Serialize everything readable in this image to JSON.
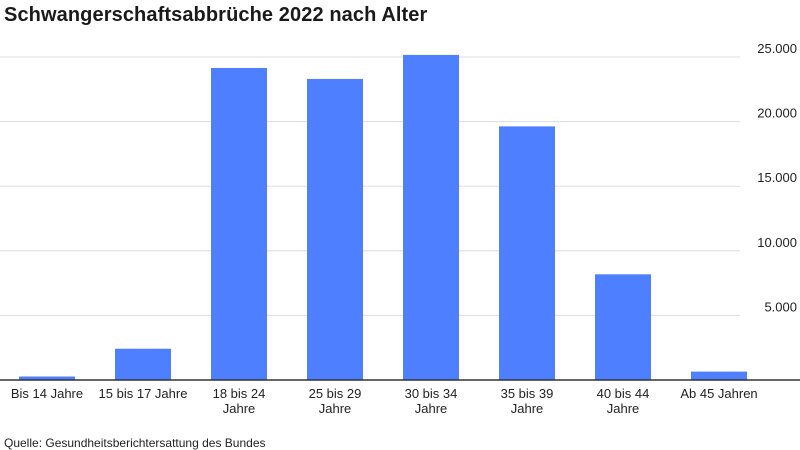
{
  "chart_data": {
    "type": "bar",
    "title": "Schwangerschaftsabbrüche 2022 nach Alter",
    "categories": [
      [
        "Bis 14 Jahre"
      ],
      [
        "15 bis 17 Jahre"
      ],
      [
        "18 bis 24",
        "Jahre"
      ],
      [
        "25 bis 29",
        "Jahre"
      ],
      [
        "30 bis 34",
        "Jahre"
      ],
      [
        "35 bis 39",
        "Jahre"
      ],
      [
        "40 bis 44",
        "Jahre"
      ],
      [
        "Ab 45 Jahren"
      ]
    ],
    "values": [
      270,
      2420,
      24150,
      23300,
      25160,
      19630,
      8180,
      650
    ],
    "ylim": [
      0,
      25000
    ],
    "yticks": [
      5000,
      10000,
      15000,
      20000,
      25000
    ],
    "ytick_labels": [
      "5.000",
      "10.000",
      "15.000",
      "20.000",
      "25.000"
    ],
    "y_axis_position": "right",
    "grid": true,
    "bar_color": "#4d7fff",
    "grid_color": "#dddddd",
    "axis_color": "#333333",
    "xlabel": "",
    "ylabel": ""
  },
  "source": "Quelle: Gesundheitsberichtersattung des Bundes"
}
